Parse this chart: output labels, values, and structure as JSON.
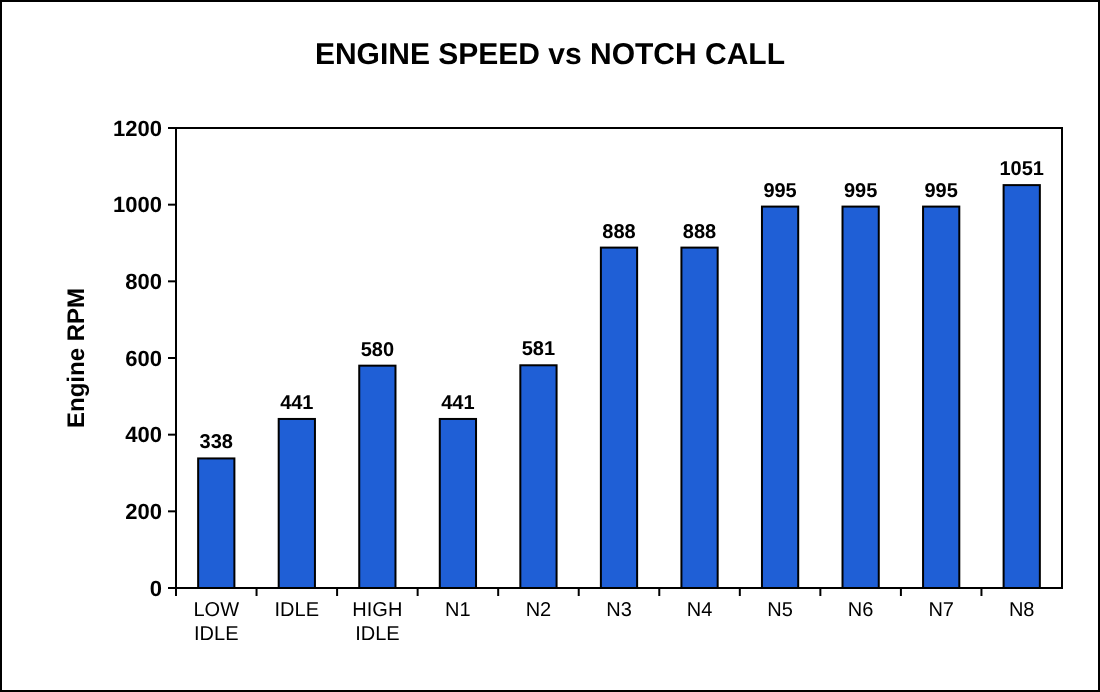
{
  "chart_data": {
    "type": "bar",
    "title": "ENGINE SPEED  vs  NOTCH CALL",
    "ylabel": "Engine RPM",
    "categories": [
      "LOW IDLE",
      "IDLE",
      "HIGH IDLE",
      "N1",
      "N2",
      "N3",
      "N4",
      "N5",
      "N6",
      "N7",
      "N8"
    ],
    "values": [
      338,
      441,
      580,
      441,
      581,
      888,
      888,
      995,
      995,
      995,
      1051
    ],
    "color": "#1f5fd6",
    "ylim": [
      0,
      1200
    ],
    "yticks": [
      0,
      200,
      400,
      600,
      800,
      1000,
      1200
    ],
    "data_labels": true
  }
}
